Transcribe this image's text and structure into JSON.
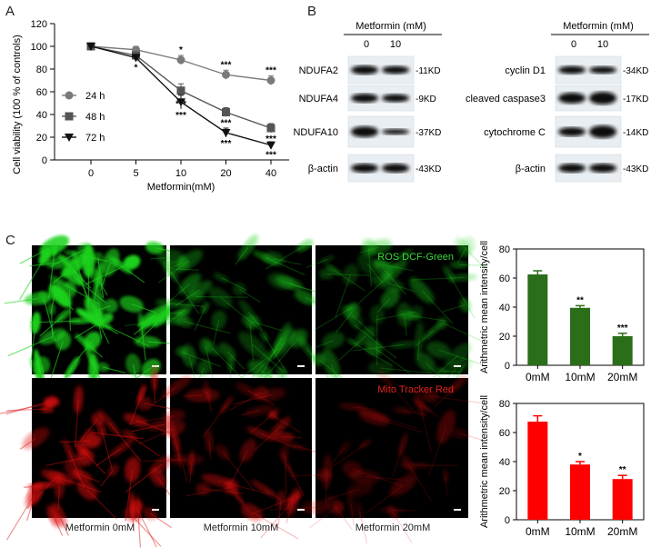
{
  "panels": {
    "a": "A",
    "b": "B",
    "c": "C"
  },
  "chart_data": [
    {
      "type": "line",
      "x": [
        0,
        5,
        10,
        20,
        40
      ],
      "xticks": [
        "0",
        "5",
        "10",
        "20",
        "40"
      ],
      "xlabel": "Metformin(mM)",
      "ylabel": "Cell viability (100 % of controls)",
      "ylim": [
        0,
        120
      ],
      "yticks": [
        "0",
        "20",
        "40",
        "60",
        "80",
        "100",
        "120"
      ],
      "legend_position": "left",
      "series": [
        {
          "name": "24 h",
          "marker": "circle",
          "color": "#7a7a7a",
          "values": [
            100,
            97,
            88,
            75,
            70
          ],
          "errors": [
            2,
            3,
            4,
            4,
            4
          ],
          "sig": [
            "",
            "",
            "*",
            "***",
            "***"
          ]
        },
        {
          "name": "48 h",
          "marker": "square",
          "color": "#555555",
          "values": [
            100,
            92,
            61,
            42,
            28
          ],
          "errors": [
            2,
            3,
            6,
            4,
            4
          ],
          "sig": [
            "",
            "",
            "***",
            "***",
            "***"
          ]
        },
        {
          "name": "72 h",
          "marker": "triangle",
          "color": "#111111",
          "values": [
            100,
            90,
            51,
            24,
            13
          ],
          "errors": [
            2,
            3,
            6,
            4,
            3
          ],
          "sig": [
            "",
            "*",
            "***",
            "***",
            "***"
          ]
        }
      ]
    },
    {
      "type": "bar",
      "categories": [
        "0mM",
        "10mM",
        "20mM"
      ],
      "values": [
        62.5,
        39.5,
        20
      ],
      "errors": [
        2.5,
        1.5,
        2
      ],
      "sig": [
        "",
        "**",
        "***"
      ],
      "ylabel": "Arithmetric mean intensity/cell",
      "ylim": [
        0,
        80
      ],
      "yticks": [
        "0",
        "20",
        "40",
        "60",
        "80"
      ],
      "color": "#2b6e1a"
    },
    {
      "type": "bar",
      "categories": [
        "0mM",
        "10mM",
        "20mM"
      ],
      "values": [
        67.5,
        38,
        28
      ],
      "errors": [
        4,
        2,
        2.5
      ],
      "sig": [
        "",
        "*",
        "**"
      ],
      "ylabel": "Arithmetric mean intensity/cell",
      "ylim": [
        0,
        80
      ],
      "yticks": [
        "0",
        "20",
        "40",
        "60",
        "80"
      ],
      "color": "#ff0000"
    }
  ],
  "blots": {
    "header": "Metformin (mM)",
    "lanes": [
      "0",
      "10"
    ],
    "left": [
      {
        "name": "NDUFA2",
        "kd": "-11KD"
      },
      {
        "name": "NDUFA4",
        "kd": "-9KD"
      },
      {
        "name": "NDUFA10",
        "kd": "-37KD"
      },
      {
        "name": "β-actin",
        "kd": "-43KD"
      }
    ],
    "right": [
      {
        "name": "cyclin D1",
        "kd": "-34KD"
      },
      {
        "name": "cleaved caspase3",
        "kd": "-17KD"
      },
      {
        "name": "cytochrome C",
        "kd": "-14KD"
      },
      {
        "name": "β-actin",
        "kd": "-43KD"
      }
    ]
  },
  "micrographs": {
    "ros_label": "ROS DCF-Green",
    "mito_label": "Mito Tracker Red",
    "captions": [
      "Metformin 0mM",
      "Metformin 10mM",
      "Metformin 20mM"
    ],
    "green_color": "#1fd41f",
    "red_color": "#e01010"
  }
}
